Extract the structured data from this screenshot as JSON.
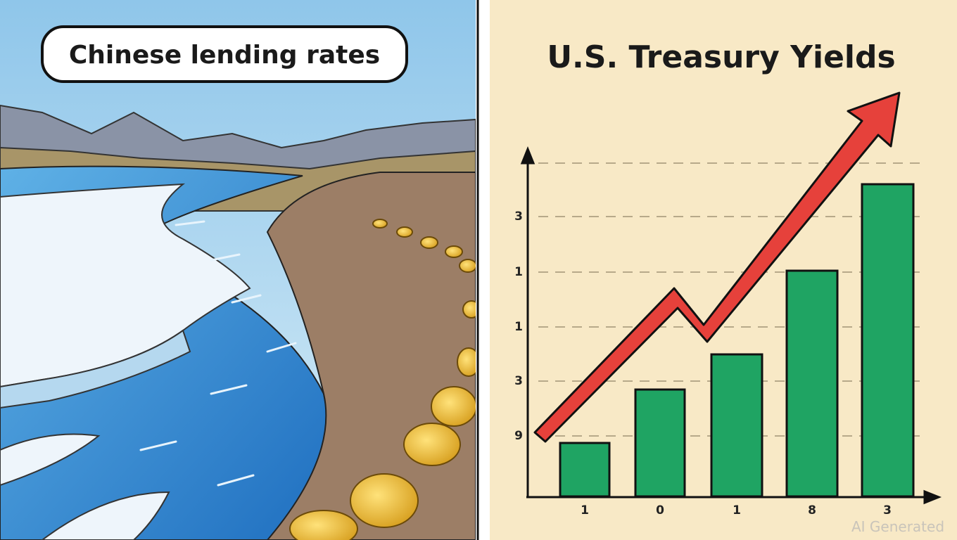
{
  "left_panel": {
    "label": "Chinese lending rates"
  },
  "right_panel": {
    "title": "U.S. Treasury Yields",
    "y_labels": [
      "3",
      "1",
      "1",
      "3",
      "9"
    ],
    "x_labels": [
      "1",
      "0",
      "1",
      "8",
      "3"
    ]
  },
  "watermark": "AI Generated"
}
